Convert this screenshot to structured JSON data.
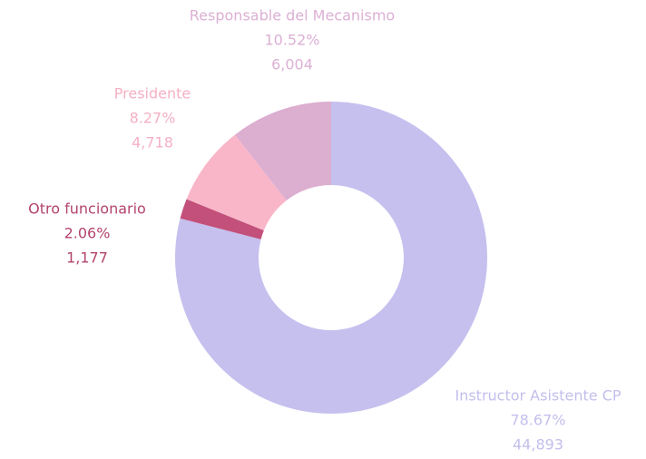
{
  "chart_data": {
    "type": "donut",
    "categories": [
      "Instructor Asistente CP",
      "Otro funcionario",
      "Presidente",
      "Responsable del Mecanismo"
    ],
    "values": [
      44893,
      1177,
      4718,
      6004
    ],
    "value_labels": [
      "44,893",
      "1,177",
      "4,718",
      "6,004"
    ],
    "percent_labels": [
      "78.67%",
      "2.06%",
      "8.27%",
      "10.52%"
    ],
    "colors": [
      "#c5c0ee",
      "#c2507a",
      "#f9b6c8",
      "#dcaed0"
    ],
    "label_colors": [
      "#c3bfec",
      "#b3446e",
      "#f5b0c4",
      "#dcb0d4"
    ]
  }
}
